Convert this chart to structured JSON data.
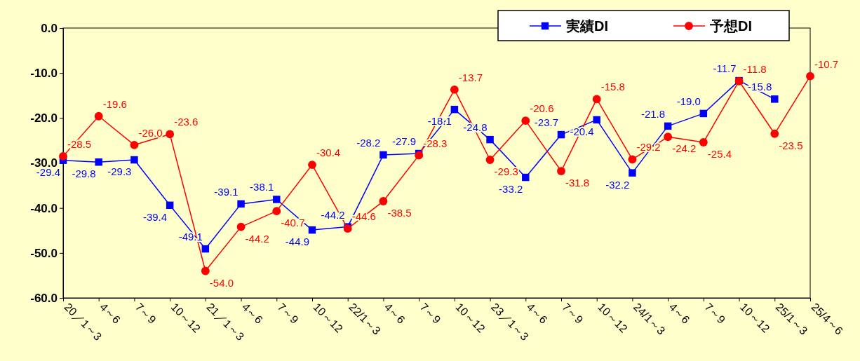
{
  "chart_data": {
    "type": "line",
    "categories": [
      "20／1～3",
      "4～6",
      "7～9",
      "10～12",
      "21／1～3",
      "4～6",
      "7～9",
      "10～12",
      "22/1～3",
      "4～6",
      "7～9",
      "10～12",
      "23／1～3",
      "4～6",
      "7～9",
      "10～12",
      "24/1～3",
      "4～6",
      "7～9",
      "10～12",
      "25/1～3",
      "25/4～6"
    ],
    "series": [
      {
        "name": "実績DI",
        "color": "#0000ff",
        "marker": "square",
        "values": [
          -29.4,
          -29.8,
          -29.3,
          -39.4,
          -49.1,
          -39.1,
          -38.1,
          -44.9,
          -44.2,
          -28.2,
          -27.9,
          -18.1,
          -24.8,
          -33.2,
          -23.7,
          -20.4,
          -32.2,
          -21.8,
          -19.0,
          -11.7,
          -15.8,
          null
        ],
        "value_labels": [
          "-29.4",
          "-29.8",
          "-29.3",
          "-39.4",
          "-49.1",
          "-39.1",
          "-38.1",
          "-44.9",
          "-44.2",
          "-28.2",
          "-27.9",
          "-18.1",
          "-24.8",
          "-33.2",
          "-23.7",
          "-20.4",
          "-32.2",
          "-21.8",
          "-19.0",
          "-11.7",
          "-15.8",
          null
        ]
      },
      {
        "name": "予想DI",
        "color": "#ff0000",
        "marker": "circle",
        "values": [
          -28.5,
          -19.6,
          -26.0,
          -23.6,
          -54.0,
          -44.2,
          -40.7,
          -30.4,
          -44.6,
          -38.5,
          -28.3,
          -13.7,
          -29.3,
          -20.6,
          -31.8,
          -15.8,
          -29.2,
          -24.2,
          -25.4,
          -11.8,
          -23.5,
          -10.7
        ],
        "value_labels": [
          "-28.5",
          "-19.6",
          "-26.0",
          "-23.6",
          "-54.0",
          "-44.2",
          "-40.7",
          "-30.4",
          "-44.6",
          "-38.5",
          "-28.3",
          "-13.7",
          "-29.3",
          "-20.6",
          "-31.8",
          "-15.8",
          "-29.2",
          "-24.2",
          "-25.4",
          "-11.8",
          "-23.5",
          "-10.7"
        ]
      }
    ],
    "ylim": [
      -60,
      0
    ],
    "yticks": [
      {
        "value": -60,
        "label": "-60.0"
      },
      {
        "value": -50,
        "label": "-50.0"
      },
      {
        "value": -40,
        "label": "-40.0"
      },
      {
        "value": -30,
        "label": "-30.0"
      },
      {
        "value": -20,
        "label": "-20.0"
      },
      {
        "value": -10,
        "label": "-10.0"
      },
      {
        "value": 0,
        "label": "0.0"
      }
    ],
    "data_labels": true,
    "legend": "top right",
    "line_style": "solid"
  }
}
